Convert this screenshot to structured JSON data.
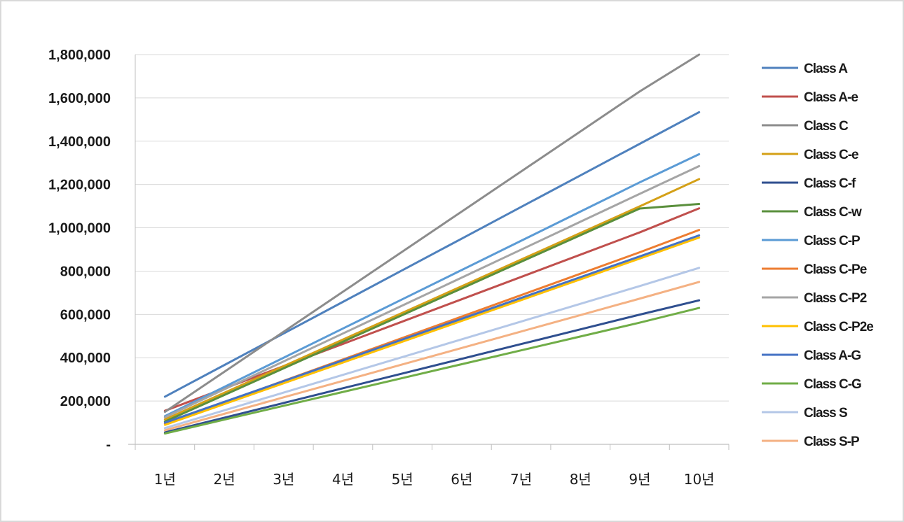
{
  "chart_data": {
    "type": "line",
    "title": "",
    "xlabel": "",
    "ylabel": "",
    "categories": [
      "1년",
      "2년",
      "3년",
      "4년",
      "5년",
      "6년",
      "7년",
      "8년",
      "9년",
      "10년"
    ],
    "ylim": [
      0,
      1800000
    ],
    "yticks": [
      0,
      200000,
      400000,
      600000,
      800000,
      1000000,
      1200000,
      1400000,
      1600000,
      1800000
    ],
    "ytick_labels": [
      "-",
      "200,000",
      "400,000",
      "600,000",
      "800,000",
      "1,000,000",
      "1,200,000",
      "1,400,000",
      "1,600,000",
      "1,800,000"
    ],
    "grid": true,
    "legend": "right",
    "series": [
      {
        "name": "Class A",
        "color": "#4f81bd",
        "values": [
          220000,
          366000,
          512000,
          658000,
          804000,
          950000,
          1096000,
          1242000,
          1388000,
          1534000
        ]
      },
      {
        "name": "Class A-e",
        "color": "#c0504d",
        "values": [
          155000,
          258000,
          361000,
          464000,
          567000,
          670000,
          773000,
          876000,
          979000,
          1090000
        ]
      },
      {
        "name": "Class C",
        "color": "#8c8c8c",
        "values": [
          150000,
          335000,
          520000,
          705000,
          890000,
          1075000,
          1260000,
          1445000,
          1630000,
          1800000
        ]
      },
      {
        "name": "Class C-e",
        "color": "#d4a017",
        "values": [
          115000,
          238000,
          361000,
          484000,
          607000,
          730000,
          853000,
          976000,
          1099000,
          1225000
        ]
      },
      {
        "name": "Class C-f",
        "color": "#2f4f8f",
        "values": [
          55000,
          123000,
          191000,
          259000,
          327000,
          395000,
          463000,
          531000,
          599000,
          665000
        ]
      },
      {
        "name": "Class C-w",
        "color": "#5a8f3c",
        "values": [
          105000,
          228000,
          351000,
          474000,
          597000,
          720000,
          843000,
          966000,
          1089000,
          1110000
        ]
      },
      {
        "name": "Class C-P",
        "color": "#5b9bd5",
        "values": [
          130000,
          265000,
          400000,
          535000,
          670000,
          805000,
          940000,
          1075000,
          1210000,
          1340000
        ]
      },
      {
        "name": "Class C-Pe",
        "color": "#ed7d31",
        "values": [
          95000,
          194000,
          293000,
          392000,
          491000,
          590000,
          689000,
          788000,
          887000,
          990000
        ]
      },
      {
        "name": "Class C-P2",
        "color": "#a5a5a5",
        "values": [
          125000,
          254000,
          383000,
          512000,
          641000,
          770000,
          899000,
          1028000,
          1157000,
          1285000
        ]
      },
      {
        "name": "Class C-P2e",
        "color": "#ffc000",
        "values": [
          90000,
          186000,
          282000,
          378000,
          474000,
          570000,
          666000,
          762000,
          858000,
          955000
        ]
      },
      {
        "name": "Class A-G",
        "color": "#4472c4",
        "values": [
          100000,
          196000,
          292000,
          388000,
          484000,
          580000,
          676000,
          772000,
          868000,
          965000
        ]
      },
      {
        "name": "Class C-G",
        "color": "#70ad47",
        "values": [
          50000,
          114000,
          178000,
          242000,
          306000,
          370000,
          434000,
          498000,
          562000,
          630000
        ]
      },
      {
        "name": "Class S",
        "color": "#b4c7e7",
        "values": [
          75000,
          157000,
          239000,
          321000,
          403000,
          485000,
          567000,
          649000,
          731000,
          815000
        ]
      },
      {
        "name": "Class S-P",
        "color": "#f4b183",
        "values": [
          65000,
          141000,
          217000,
          293000,
          369000,
          445000,
          521000,
          597000,
          673000,
          750000
        ]
      }
    ]
  }
}
